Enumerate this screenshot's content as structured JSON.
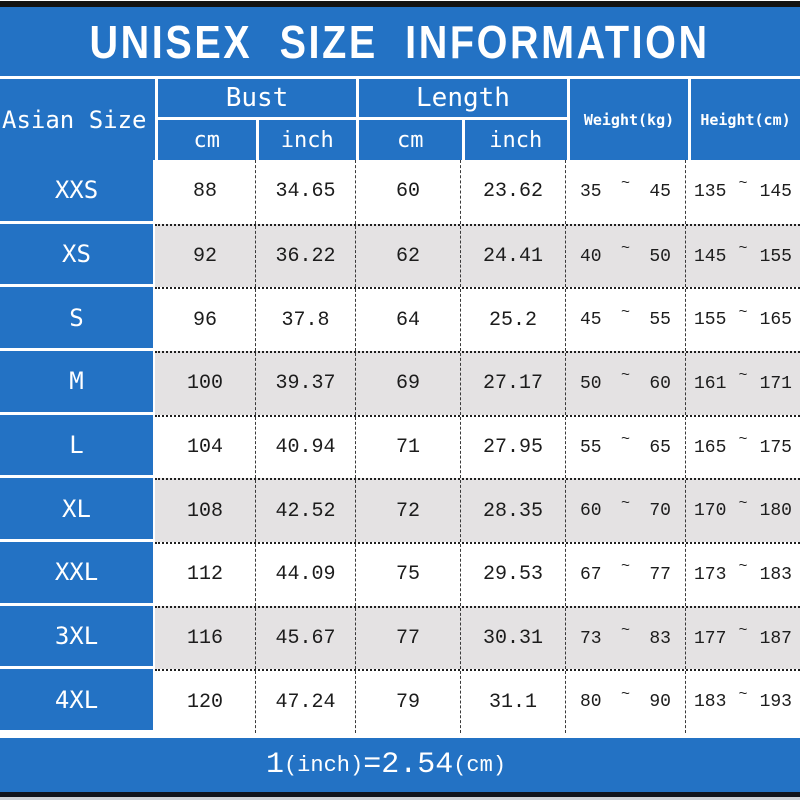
{
  "title": "UNISEX SIZE INFORMATION",
  "colors": {
    "blue": "#2372c4",
    "alt_row": "#e4e2e3",
    "edge_bar": "#131313",
    "text": "#1c1c1c"
  },
  "header": {
    "size_col": "Asian Size",
    "bust": {
      "label": "Bust",
      "sub_cm": "cm",
      "sub_inch": "inch"
    },
    "length": {
      "label": "Length",
      "sub_cm": "cm",
      "sub_inch": "inch"
    },
    "weight": "Weight(kg)",
    "height": "Height(cm)"
  },
  "tilde": "~",
  "rows": [
    {
      "size": "XXS",
      "bust_cm": "88",
      "bust_inch": "34.65",
      "length_cm": "60",
      "length_inch": "23.62",
      "weight_min": "35",
      "weight_max": "45",
      "height_min": "135",
      "height_max": "145"
    },
    {
      "size": "XS",
      "bust_cm": "92",
      "bust_inch": "36.22",
      "length_cm": "62",
      "length_inch": "24.41",
      "weight_min": "40",
      "weight_max": "50",
      "height_min": "145",
      "height_max": "155"
    },
    {
      "size": "S",
      "bust_cm": "96",
      "bust_inch": "37.8",
      "length_cm": "64",
      "length_inch": "25.2",
      "weight_min": "45",
      "weight_max": "55",
      "height_min": "155",
      "height_max": "165"
    },
    {
      "size": "M",
      "bust_cm": "100",
      "bust_inch": "39.37",
      "length_cm": "69",
      "length_inch": "27.17",
      "weight_min": "50",
      "weight_max": "60",
      "height_min": "161",
      "height_max": "171"
    },
    {
      "size": "L",
      "bust_cm": "104",
      "bust_inch": "40.94",
      "length_cm": "71",
      "length_inch": "27.95",
      "weight_min": "55",
      "weight_max": "65",
      "height_min": "165",
      "height_max": "175"
    },
    {
      "size": "XL",
      "bust_cm": "108",
      "bust_inch": "42.52",
      "length_cm": "72",
      "length_inch": "28.35",
      "weight_min": "60",
      "weight_max": "70",
      "height_min": "170",
      "height_max": "180"
    },
    {
      "size": "XXL",
      "bust_cm": "112",
      "bust_inch": "44.09",
      "length_cm": "75",
      "length_inch": "29.53",
      "weight_min": "67",
      "weight_max": "77",
      "height_min": "173",
      "height_max": "183"
    },
    {
      "size": "3XL",
      "bust_cm": "116",
      "bust_inch": "45.67",
      "length_cm": "77",
      "length_inch": "30.31",
      "weight_min": "73",
      "weight_max": "83",
      "height_min": "177",
      "height_max": "187"
    },
    {
      "size": "4XL",
      "bust_cm": "120",
      "bust_inch": "47.24",
      "length_cm": "79",
      "length_inch": "31.1",
      "weight_min": "80",
      "weight_max": "90",
      "height_min": "183",
      "height_max": "193"
    }
  ],
  "footer": {
    "part_one": "1",
    "part_inch": "(inch)",
    "part_eq": "=",
    "part_val": "2.54",
    "part_cm": "(cm)"
  },
  "chart_data": {
    "type": "table",
    "title": "UNISEX SIZE INFORMATION",
    "columns": [
      "Asian Size",
      "Bust cm",
      "Bust inch",
      "Length cm",
      "Length inch",
      "Weight(kg)",
      "Height(cm)"
    ],
    "rows": [
      [
        "XXS",
        88,
        34.65,
        60,
        23.62,
        "35~45",
        "135~145"
      ],
      [
        "XS",
        92,
        36.22,
        62,
        24.41,
        "40~50",
        "145~155"
      ],
      [
        "S",
        96,
        37.8,
        64,
        25.2,
        "45~55",
        "155~165"
      ],
      [
        "M",
        100,
        39.37,
        69,
        27.17,
        "50~60",
        "161~171"
      ],
      [
        "L",
        104,
        40.94,
        71,
        27.95,
        "55~65",
        "165~175"
      ],
      [
        "XL",
        108,
        42.52,
        72,
        28.35,
        "60~70",
        "170~180"
      ],
      [
        "XXL",
        112,
        44.09,
        75,
        29.53,
        "67~77",
        "173~183"
      ],
      [
        "3XL",
        116,
        45.67,
        77,
        30.31,
        "73~83",
        "177~187"
      ],
      [
        "4XL",
        120,
        47.24,
        79,
        31.1,
        "80~90",
        "183~193"
      ]
    ],
    "note": "1(inch)=2.54(cm)"
  }
}
